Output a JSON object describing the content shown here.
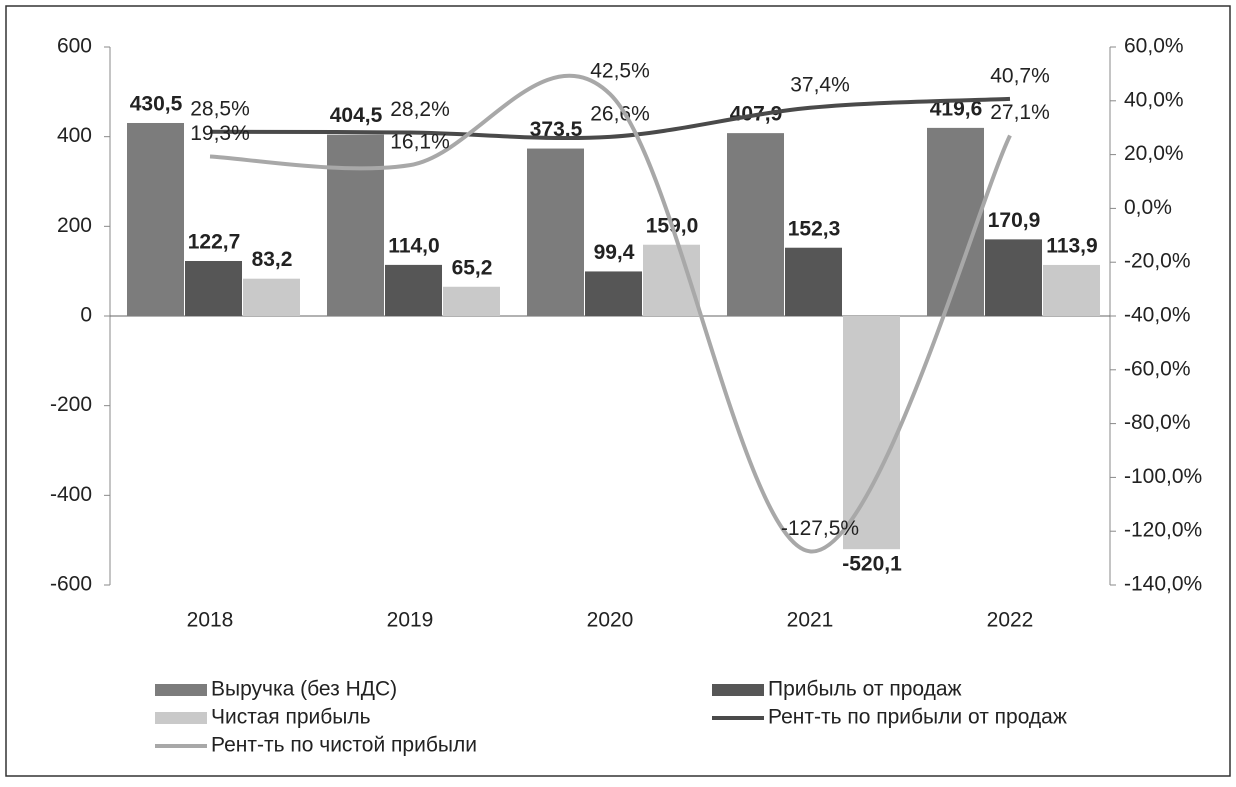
{
  "chart_data": {
    "type": "bar",
    "categories": [
      "2018",
      "2019",
      "2020",
      "2021",
      "2022"
    ],
    "series": [
      {
        "name": "Выручка (без НДС)",
        "type": "bar",
        "color": "#7c7c7c",
        "values": [
          430.5,
          404.5,
          373.5,
          407.9,
          419.6
        ],
        "value_labels": [
          "430,5",
          "404,5",
          "373,5",
          "407,9",
          "419,6"
        ]
      },
      {
        "name": "Прибыль от продаж",
        "type": "bar",
        "color": "#565656",
        "values": [
          122.7,
          114.0,
          99.4,
          152.3,
          170.9
        ],
        "value_labels": [
          "122,7",
          "114,0",
          "99,4",
          "152,3",
          "170,9"
        ]
      },
      {
        "name": "Чистая прибыль",
        "type": "bar",
        "color": "#c9c9c9",
        "values": [
          83.2,
          65.2,
          159.0,
          -520.1,
          113.9
        ],
        "value_labels": [
          "83,2",
          "65,2",
          "159,0",
          "-520,1",
          "113,9"
        ]
      },
      {
        "name": "Рент-ть по прибыли от продаж",
        "type": "line",
        "axis": "y2",
        "color": "#4a4a4a",
        "values": [
          28.5,
          28.2,
          26.6,
          37.4,
          40.7
        ],
        "value_labels": [
          "28,5%",
          "28,2%",
          "26,6%",
          "37,4%",
          "40,7%"
        ]
      },
      {
        "name": "Рент-ть по чистой прибыли",
        "type": "line",
        "axis": "y2",
        "color": "#a8a8a8",
        "values": [
          19.3,
          16.1,
          42.5,
          -127.5,
          27.1
        ],
        "value_labels": [
          "19,3%",
          "16,1%",
          "42,5%",
          "-127,5%",
          "27,1%"
        ]
      }
    ],
    "ylim": [
      -600,
      600
    ],
    "yticks": [
      -600,
      -400,
      -200,
      0,
      200,
      400,
      600
    ],
    "y2lim": [
      -140,
      60
    ],
    "y2ticks": [
      {
        "value": -140,
        "label": "-140,0%"
      },
      {
        "value": -120,
        "label": "-120,0%"
      },
      {
        "value": -100,
        "label": "-100,0%"
      },
      {
        "value": -80,
        "label": "-80,0%"
      },
      {
        "value": -60,
        "label": "-60,0%"
      },
      {
        "value": -40,
        "label": "-40,0%"
      },
      {
        "value": -20,
        "label": "-20,0%"
      },
      {
        "value": 0,
        "label": "0,0%"
      },
      {
        "value": 20,
        "label": "20,0%"
      },
      {
        "value": 40,
        "label": "40,0%"
      },
      {
        "value": 60,
        "label": "60,0%"
      }
    ],
    "legend": "bottom"
  }
}
